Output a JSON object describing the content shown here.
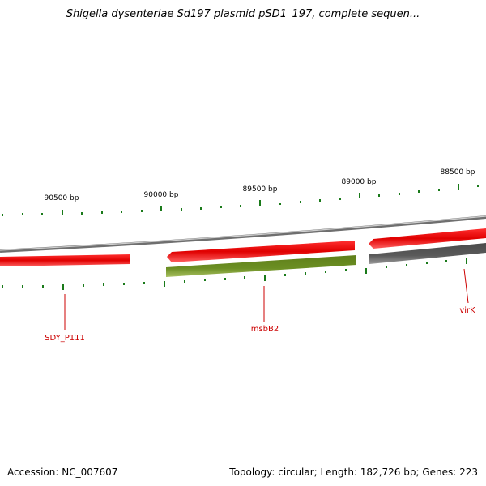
{
  "title": "Shigella dysenteriae Sd197 plasmid pSD1_197, complete sequen...",
  "footer": {
    "accession": "Accession: NC_007607",
    "topology": "Topology: circular; Length: 182,726 bp; Genes: 223"
  },
  "ruler_labels": [
    "90500 bp",
    "90000 bp",
    "89500 bp",
    "89000 bp",
    "88500 bp"
  ],
  "gene_labels": [
    "SDY_P111",
    "msbB2",
    "virK"
  ],
  "colors": {
    "backbone": "#808080",
    "gene_red": "#e8000a",
    "gene_green": "#6b8e23",
    "gene_gray": "#5a5a5a",
    "tick": "#1a7a1a",
    "label_red": "#cc0000"
  }
}
